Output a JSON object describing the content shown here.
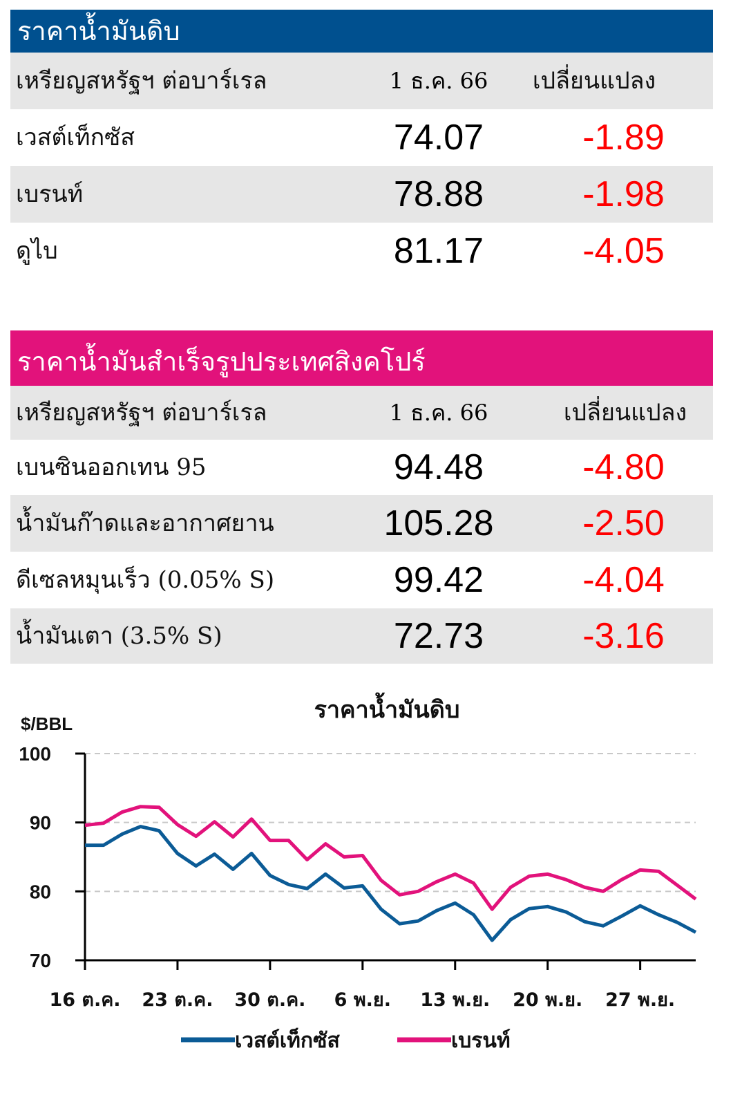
{
  "crude_table": {
    "title": "ราคาน้ำมันดิบ",
    "header_color": "#00508f",
    "unit_label": "เหรียญสหรัฐฯ ต่อบาร์เรล",
    "date_label": "1 ธ.ค. 66",
    "change_label": "เปลี่ยนแปลง",
    "rows": [
      {
        "name": "เวสต์เท็กซัส",
        "price": "74.07",
        "change": "-1.89"
      },
      {
        "name": "เบรนท์",
        "price": "78.88",
        "change": "-1.98"
      },
      {
        "name": "ดูไบ",
        "price": "81.17",
        "change": "-4.05"
      }
    ]
  },
  "refined_table": {
    "title": "ราคาน้ำมันสำเร็จรูปประเทศสิงคโปร์",
    "header_color": "#e2127b",
    "unit_label": "เหรียญสหรัฐฯ ต่อบาร์เรล",
    "date_label": "1 ธ.ค. 66",
    "change_label": "เปลี่ยนแปลง",
    "rows": [
      {
        "name": "เบนซินออกเทน 95",
        "price": "94.48",
        "change": "-4.80"
      },
      {
        "name": "น้ำมันก๊าดและอากาศยาน",
        "price": "105.28",
        "change": "-2.50"
      },
      {
        "name": "ดีเซลหมุนเร็ว (0.05% S)",
        "price": "99.42",
        "change": "-4.04"
      },
      {
        "name": "น้ำมันเตา (3.5% S)",
        "price": "72.73",
        "change": "-3.16"
      }
    ]
  },
  "chart_data": {
    "type": "line",
    "title": "ราคาน้ำมันดิบ",
    "ylabel": "$/BBL",
    "ylim": [
      70,
      100
    ],
    "yticks": [
      70,
      80,
      90,
      100
    ],
    "xticks": [
      "16 ต.ค.",
      "23 ต.ค.",
      "30 ต.ค.",
      "6 พ.ย.",
      "13 พ.ย.",
      "20 พ.ย.",
      "27 พ.ย."
    ],
    "grid": "horizontal dashed",
    "legend": "bottom",
    "x": [
      "16 ต.ค.",
      "17 ต.ค.",
      "18 ต.ค.",
      "19 ต.ค.",
      "20 ต.ค.",
      "23 ต.ค.",
      "24 ต.ค.",
      "25 ต.ค.",
      "26 ต.ค.",
      "27 ต.ค.",
      "30 ต.ค.",
      "31 ต.ค.",
      "1 พ.ย.",
      "2 พ.ย.",
      "3 พ.ย.",
      "6 พ.ย.",
      "7 พ.ย.",
      "8 พ.ย.",
      "9 พ.ย.",
      "10 พ.ย.",
      "13 พ.ย.",
      "14 พ.ย.",
      "15 พ.ย.",
      "16 พ.ย.",
      "17 พ.ย.",
      "20 พ.ย.",
      "21 พ.ย.",
      "22 พ.ย.",
      "24 พ.ย.",
      "27 พ.ย.",
      "28 พ.ย.",
      "29 พ.ย.",
      "30 พ.ย.",
      "1 ธ.ค."
    ],
    "series": [
      {
        "name": "เวสต์เท็กซัส",
        "color": "#0b5b96",
        "values": [
          86.7,
          86.7,
          88.3,
          89.4,
          88.8,
          85.5,
          83.7,
          85.4,
          83.2,
          85.5,
          82.3,
          81.0,
          80.4,
          82.5,
          80.5,
          80.8,
          77.4,
          75.3,
          75.7,
          77.2,
          78.3,
          76.6,
          72.9,
          75.9,
          77.5,
          77.8,
          77.0,
          75.6,
          75.0,
          76.4,
          77.9,
          76.6,
          75.5,
          74.07
        ]
      },
      {
        "name": "เบรนท์",
        "color": "#e2127b",
        "values": [
          89.6,
          89.9,
          91.5,
          92.3,
          92.2,
          89.7,
          88.0,
          90.1,
          87.9,
          90.5,
          87.4,
          87.4,
          84.6,
          86.9,
          85.0,
          85.2,
          81.6,
          79.5,
          80.0,
          81.4,
          82.5,
          81.2,
          77.4,
          80.6,
          82.2,
          82.5,
          81.7,
          80.6,
          80.0,
          81.7,
          83.1,
          82.9,
          80.9,
          78.88
        ]
      }
    ]
  }
}
